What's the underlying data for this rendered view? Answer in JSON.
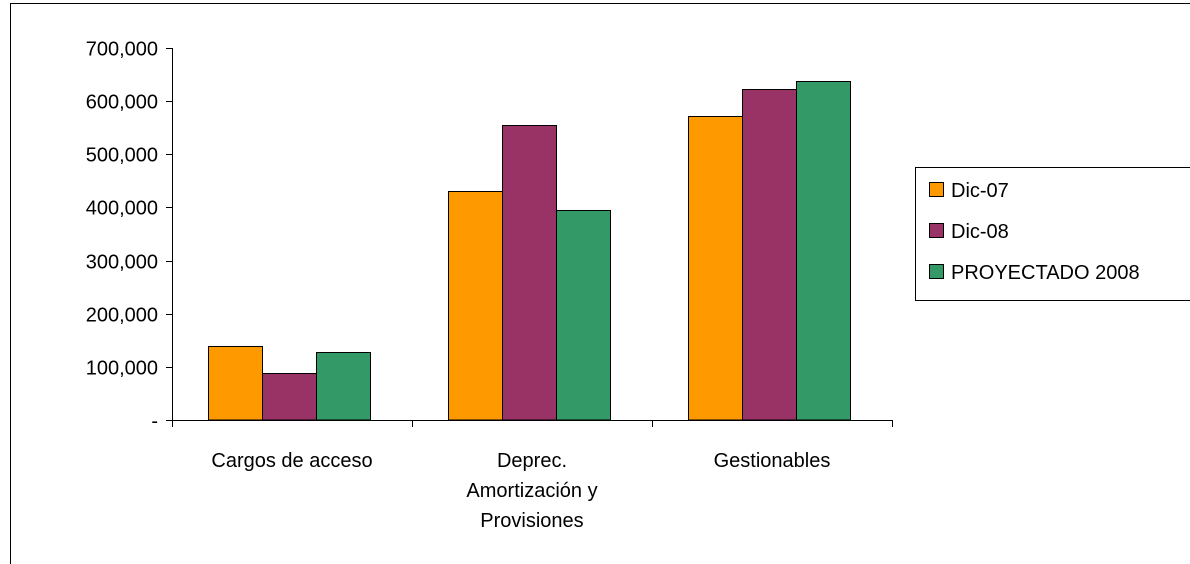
{
  "chart_data": {
    "type": "bar",
    "categories": [
      [
        "Cargos de acceso"
      ],
      [
        "Deprec.",
        "Amortización y",
        "Provisiones"
      ],
      [
        "Gestionables"
      ]
    ],
    "series": [
      {
        "name": "Dic-07",
        "values": [
          140000,
          430000,
          572000
        ],
        "color": "#FF9900"
      },
      {
        "name": "Dic-08",
        "values": [
          88000,
          556000,
          622000
        ],
        "color": "#993366"
      },
      {
        "name": "PROYECTADO 2008",
        "values": [
          128000,
          395000,
          638000
        ],
        "color": "#339966"
      }
    ],
    "y_ticks": [
      {
        "value": 0,
        "label": "-"
      },
      {
        "value": 100000,
        "label": "100,000"
      },
      {
        "value": 200000,
        "label": "200,000"
      },
      {
        "value": 300000,
        "label": "300,000"
      },
      {
        "value": 400000,
        "label": "400,000"
      },
      {
        "value": 500000,
        "label": "500,000"
      },
      {
        "value": 600000,
        "label": "600,000"
      },
      {
        "value": 700000,
        "label": "700,000"
      }
    ],
    "ylim": [
      0,
      700000
    ],
    "grid": false,
    "legend_position": "right"
  }
}
